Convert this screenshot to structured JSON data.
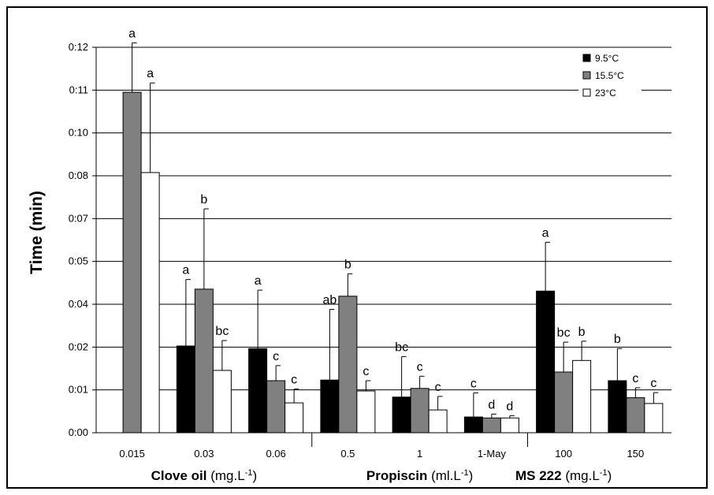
{
  "chart_data": {
    "type": "bar",
    "ylabel": "Time (min)",
    "y_ticks": [
      "0:00",
      "0:01",
      "0:02",
      "0:04",
      "0:05",
      "0:07",
      "0:08",
      "0:10",
      "0:11",
      "0:12"
    ],
    "ylim": [
      0,
      0.12
    ],
    "grid": true,
    "legend_position": "top-right",
    "categories": [
      "0.015",
      "0.03",
      "0.06",
      "0.5",
      "1",
      "1-May",
      "100",
      "150"
    ],
    "groups": [
      {
        "name": "Clove oil",
        "unit": "(mg.L",
        "unit_sup": "-1",
        "unit_close": ")"
      },
      {
        "name": "Propiscin",
        "unit": "(ml.L",
        "unit_sup": "-1",
        "unit_close": ")"
      },
      {
        "name": "MS 222",
        "unit": "(mg.L",
        "unit_sup": "-1",
        "unit_close": ")"
      }
    ],
    "series": [
      {
        "name": "9.5°C",
        "color": "#000000",
        "values": [
          null,
          0.027,
          0.0262,
          0.0164,
          0.0111,
          0.0049,
          0.0441,
          0.0162
        ],
        "errors": [
          null,
          0.0207,
          0.0182,
          0.022,
          0.0126,
          0.0075,
          0.0152,
          0.01
        ],
        "labels": [
          null,
          "a",
          "a",
          "ab",
          "bc",
          "c",
          "a",
          "b"
        ]
      },
      {
        "name": "15.5°C",
        "color": "#808080",
        "values": [
          0.106,
          0.0447,
          0.0162,
          0.0425,
          0.0138,
          0.0046,
          0.0189,
          0.0109
        ],
        "errors": [
          0.0154,
          0.025,
          0.0047,
          0.007,
          0.0038,
          0.0012,
          0.0093,
          0.0031
        ],
        "labels": [
          "a",
          "b",
          "c",
          "b",
          "c",
          "d",
          "bc",
          "c"
        ]
      },
      {
        "name": "23°C",
        "color": "#ffffff",
        "values": [
          0.081,
          0.0194,
          0.0093,
          0.013,
          0.0071,
          0.0046,
          0.0225,
          0.0091
        ],
        "errors": [
          0.0279,
          0.0093,
          0.0043,
          0.0032,
          0.0042,
          0.0007,
          0.006,
          0.0034
        ],
        "labels": [
          "a",
          "bc",
          "c",
          "c",
          "c",
          "d",
          "b",
          "c"
        ]
      }
    ]
  }
}
